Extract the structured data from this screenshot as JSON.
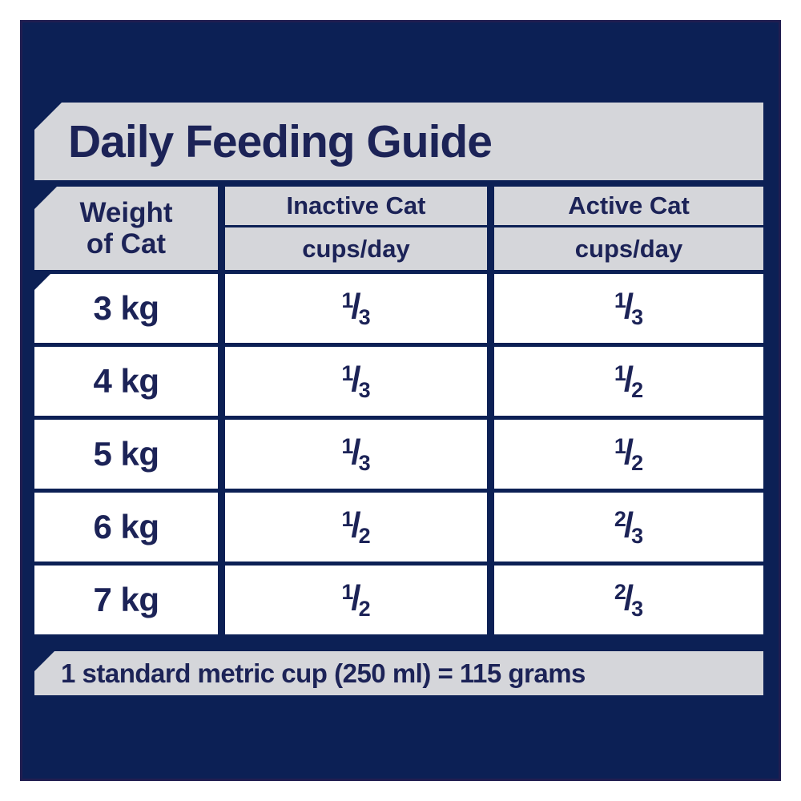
{
  "title": "Daily Feeding Guide",
  "fraction_slash": "/",
  "colors": {
    "outer_background": "#ffffff",
    "panel_navy": "#0c2055",
    "panel_border": "#201d50",
    "bar_gray": "#d5d6da",
    "cell_white": "#ffffff",
    "text_navy": "#1c2357"
  },
  "table": {
    "weight_header_line1": "Weight",
    "weight_header_line2": "of Cat",
    "col_inactive_label": "Inactive Cat",
    "col_inactive_sublabel": "cups/day",
    "col_active_label": "Active Cat",
    "col_active_sublabel": "cups/day",
    "rows": [
      {
        "weight": "3 kg",
        "inactive_num": "1",
        "inactive_den": "3",
        "active_num": "1",
        "active_den": "3"
      },
      {
        "weight": "4 kg",
        "inactive_num": "1",
        "inactive_den": "3",
        "active_num": "1",
        "active_den": "2"
      },
      {
        "weight": "5 kg",
        "inactive_num": "1",
        "inactive_den": "3",
        "active_num": "1",
        "active_den": "2"
      },
      {
        "weight": "6 kg",
        "inactive_num": "1",
        "inactive_den": "2",
        "active_num": "2",
        "active_den": "3"
      },
      {
        "weight": "7 kg",
        "inactive_num": "1",
        "inactive_den": "2",
        "active_num": "2",
        "active_den": "3"
      }
    ]
  },
  "footer_note": "1 standard metric cup (250 ml) = 115 grams",
  "chart_data": {
    "type": "table",
    "title": "Daily Feeding Guide",
    "columns": [
      "Weight of Cat",
      "Inactive Cat cups/day",
      "Active Cat cups/day"
    ],
    "rows": [
      [
        "3 kg",
        "1/3",
        "1/3"
      ],
      [
        "4 kg",
        "1/3",
        "1/2"
      ],
      [
        "5 kg",
        "1/3",
        "1/2"
      ],
      [
        "6 kg",
        "1/2",
        "2/3"
      ],
      [
        "7 kg",
        "1/2",
        "2/3"
      ]
    ],
    "note": "1 standard metric cup (250 ml) = 115 grams"
  }
}
